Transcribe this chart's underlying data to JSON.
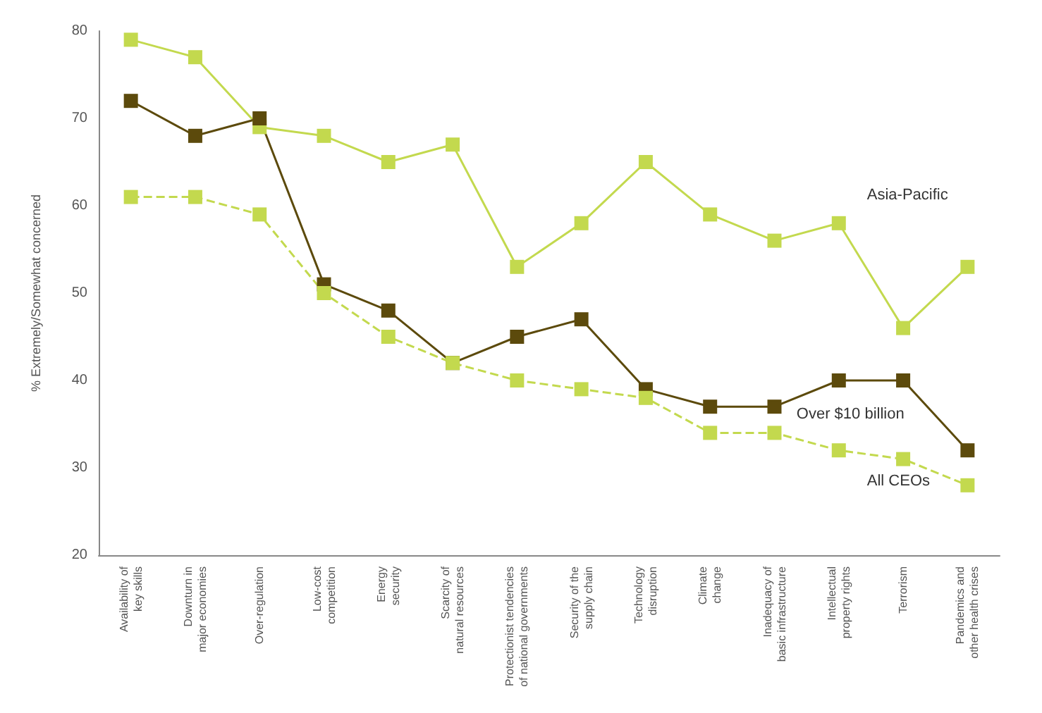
{
  "chart_data": {
    "type": "line",
    "ylabel": "% Extremely/Somewhat concerned",
    "categories": [
      "Availability of\nkey skills",
      "Downturn in\nmajor economies",
      "Over-regulation",
      "Low-cost\ncompetition",
      "Energy\nsecurity",
      "Scarcity of\nnatural resources",
      "Protectionist tendencies\nof national governments",
      "Security of the\nsupply chain",
      "Technology\ndisruption",
      "Climate\nchange",
      "Inadequacy of\nbasic infrastructure",
      "Intellectual\nproperty rights",
      "Terrorism",
      "Pandemics and\nother health crises"
    ],
    "series": [
      {
        "name": "Asia-Pacific",
        "color": "#c3d94e",
        "line_style": "solid",
        "values": [
          79,
          77,
          69,
          68,
          65,
          67,
          53,
          58,
          65,
          59,
          56,
          58,
          46,
          53
        ]
      },
      {
        "name": "Over $10 billion",
        "color": "#5c4a0c",
        "line_style": "solid",
        "values": [
          72,
          68,
          70,
          51,
          48,
          42,
          45,
          47,
          39,
          37,
          37,
          40,
          40,
          32
        ]
      },
      {
        "name": "All CEOs",
        "color": "#c3d94e",
        "line_style": "dashed",
        "values": [
          61,
          61,
          59,
          50,
          45,
          42,
          40,
          39,
          38,
          34,
          34,
          32,
          31,
          28
        ]
      }
    ],
    "ylim": [
      20,
      80
    ],
    "yticks": [
      20,
      30,
      40,
      50,
      60,
      70,
      80
    ],
    "grid": false,
    "legend": false,
    "marker": "square"
  }
}
